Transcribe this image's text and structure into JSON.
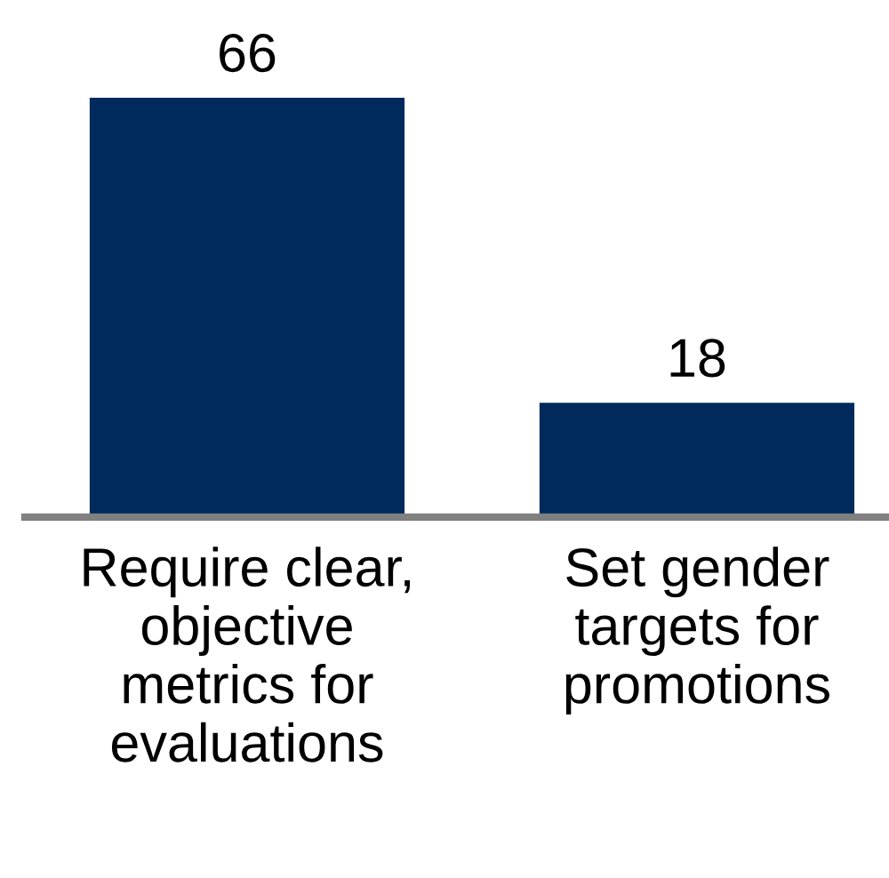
{
  "chart_data": {
    "type": "bar",
    "categories": [
      "Require clear,\nobjective\nmetrics for\nevaluations",
      "Set gender\ntargets for\npromotions"
    ],
    "values": [
      66,
      18
    ],
    "color": "#002a5c",
    "data_labels": true
  }
}
